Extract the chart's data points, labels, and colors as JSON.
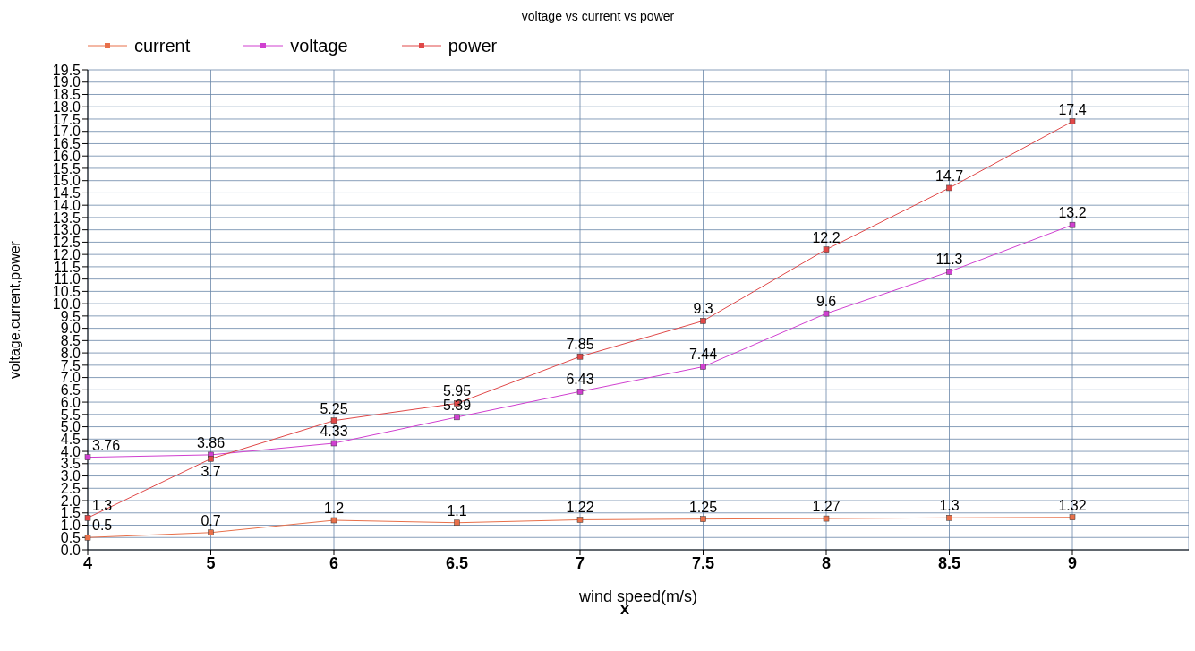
{
  "chart_data": {
    "type": "line",
    "title": "voltage vs current vs power",
    "xlabel": "wind speed(m/s)",
    "ylabel": "voltage,current,power",
    "annotations": [
      "x"
    ],
    "categories": [
      "4",
      "5",
      "6",
      "6.5",
      "7",
      "7.5",
      "8",
      "8.5",
      "9"
    ],
    "series": [
      {
        "name": "current",
        "color": "#e8704a",
        "values": [
          0.5,
          0.7,
          1.2,
          1.1,
          1.22,
          1.25,
          1.27,
          1.3,
          1.32
        ]
      },
      {
        "name": "voltage",
        "color": "#d040d0",
        "values": [
          3.76,
          3.86,
          4.33,
          5.39,
          6.43,
          7.44,
          9.6,
          11.3,
          13.2
        ]
      },
      {
        "name": "power",
        "color": "#e04848",
        "values": [
          1.3,
          3.7,
          5.25,
          5.95,
          7.85,
          9.3,
          12.2,
          14.7,
          17.4
        ]
      }
    ],
    "ylim": [
      0,
      19.5
    ],
    "yticks": [
      {
        "value": 0,
        "label": "0.0"
      },
      {
        "value": 0.5,
        "label": "0.5"
      },
      {
        "value": 1,
        "label": "1.0"
      },
      {
        "value": 1.5,
        "label": "1.5"
      },
      {
        "value": 2,
        "label": "2.0"
      },
      {
        "value": 2.5,
        "label": "2.5"
      },
      {
        "value": 3,
        "label": "3.0"
      },
      {
        "value": 3.5,
        "label": "3.5"
      },
      {
        "value": 4,
        "label": "4.0"
      },
      {
        "value": 4.5,
        "label": "4.5"
      },
      {
        "value": 5,
        "label": "5.0"
      },
      {
        "value": 5.5,
        "label": "5.5"
      },
      {
        "value": 6,
        "label": "6.0"
      },
      {
        "value": 6.5,
        "label": "6.5"
      },
      {
        "value": 7,
        "label": "7.0"
      },
      {
        "value": 7.5,
        "label": "7.5"
      },
      {
        "value": 8,
        "label": "8.0"
      },
      {
        "value": 8.5,
        "label": "8.5"
      },
      {
        "value": 9,
        "label": "9.0"
      },
      {
        "value": 9.5,
        "label": "9.5"
      },
      {
        "value": 10,
        "label": "10.0"
      },
      {
        "value": 10.5,
        "label": "10.5"
      },
      {
        "value": 11,
        "label": "11.0"
      },
      {
        "value": 11.5,
        "label": "11.5"
      },
      {
        "value": 12,
        "label": "12.0"
      },
      {
        "value": 12.5,
        "label": "12.5"
      },
      {
        "value": 13,
        "label": "13.0"
      },
      {
        "value": 13.5,
        "label": "13.5"
      },
      {
        "value": 14,
        "label": "14.0"
      },
      {
        "value": 14.5,
        "label": "14.5"
      },
      {
        "value": 15,
        "label": "15.0"
      },
      {
        "value": 15.5,
        "label": "15.5"
      },
      {
        "value": 16,
        "label": "16.0"
      },
      {
        "value": 16.5,
        "label": "16.5"
      },
      {
        "value": 17,
        "label": "17.0"
      },
      {
        "value": 17.5,
        "label": "17.5"
      },
      {
        "value": 18,
        "label": "18.0"
      },
      {
        "value": 18.5,
        "label": "18.5"
      },
      {
        "value": 19,
        "label": "19.0"
      },
      {
        "value": 19.5,
        "label": "19.5"
      }
    ],
    "grid": true,
    "legend": "top left",
    "marker": "square",
    "line_style": "solid",
    "data_labels": true
  }
}
